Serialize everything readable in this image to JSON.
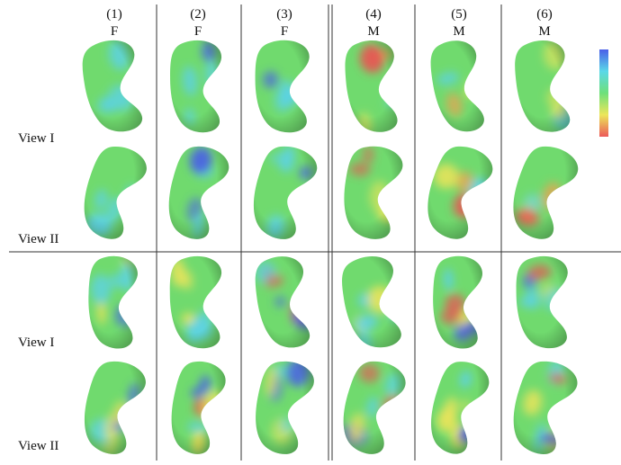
{
  "columns": [
    {
      "index": "(1)",
      "sex": "F"
    },
    {
      "index": "(2)",
      "sex": "F"
    },
    {
      "index": "(3)",
      "sex": "F"
    },
    {
      "index": "(4)",
      "sex": "M"
    },
    {
      "index": "(5)",
      "sex": "M"
    },
    {
      "index": "(6)",
      "sex": "M"
    }
  ],
  "rows": [
    {
      "label": "View I"
    },
    {
      "label": "View II"
    },
    {
      "label": "View I"
    },
    {
      "label": "View II"
    }
  ]
}
